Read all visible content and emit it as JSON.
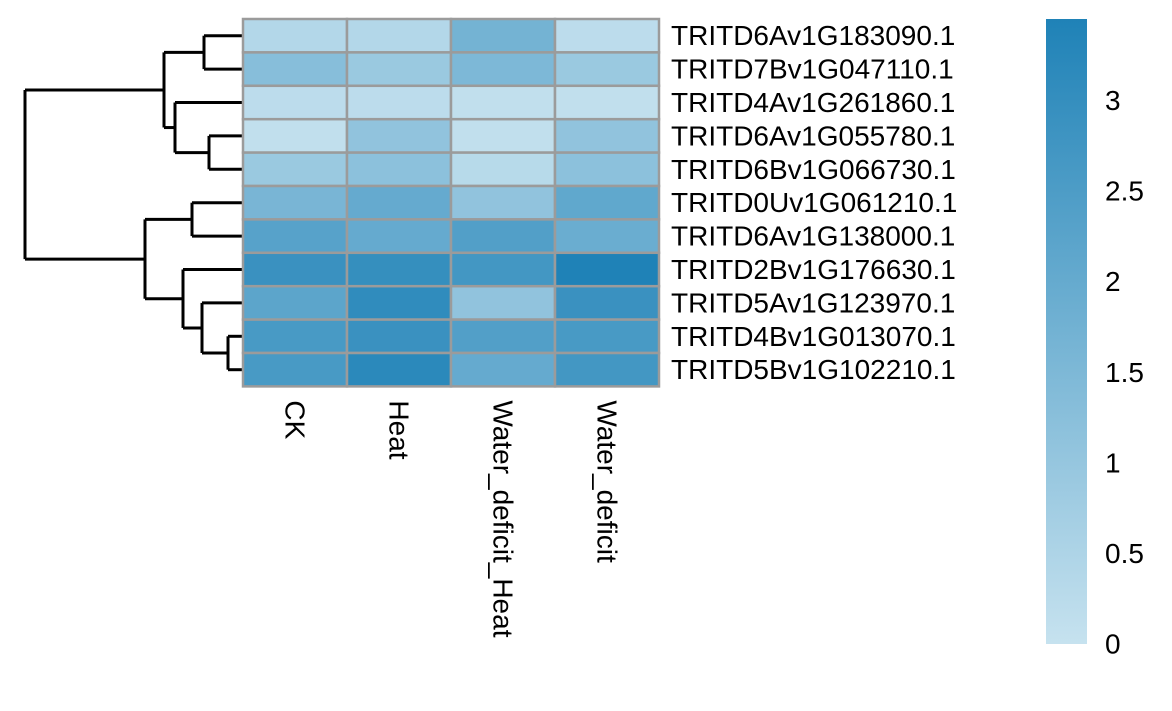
{
  "chart_data": {
    "type": "heatmap",
    "title": "",
    "xlabel": "",
    "ylabel": "",
    "columns": [
      "CK",
      "Heat",
      "Water_deficit_Heat",
      "Water_deficit"
    ],
    "rows": [
      "TRITD6Av1G183090.1",
      "TRITD7Bv1G047110.1",
      "TRITD4Av1G261860.1",
      "TRITD6Av1G055780.1",
      "TRITD6Bv1G066730.1",
      "TRITD0Uv1G061210.1",
      "TRITD6Av1G138000.1",
      "TRITD2Bv1G176630.1",
      "TRITD5Av1G123970.1",
      "TRITD4Bv1G013070.1",
      "TRITD5Bv1G102210.1"
    ],
    "values": [
      [
        0.4,
        0.4,
        1.7,
        0.2
      ],
      [
        1.3,
        0.9,
        1.5,
        0.9
      ],
      [
        0.2,
        0.2,
        0.1,
        0.1
      ],
      [
        0.1,
        1.1,
        0.1,
        1.1
      ],
      [
        0.9,
        1.2,
        0.3,
        1.2
      ],
      [
        1.6,
        2.0,
        1.1,
        2.1
      ],
      [
        2.3,
        2.0,
        2.4,
        1.9
      ],
      [
        2.9,
        3.0,
        2.7,
        3.5
      ],
      [
        2.2,
        3.1,
        1.1,
        2.9
      ],
      [
        2.6,
        2.9,
        2.4,
        2.6
      ],
      [
        2.6,
        3.2,
        2.0,
        2.7
      ]
    ],
    "color_scale": {
      "min": 0,
      "max": 3.45,
      "low_color": "#c6e2ef",
      "high_color": "#1f82b7",
      "ticks": [
        "0",
        "0.5",
        "1",
        "1.5",
        "2",
        "2.5",
        "3"
      ],
      "tick_values": [
        0,
        0.5,
        1,
        1.5,
        2,
        2.5,
        3
      ]
    },
    "cell_border_color": "#9b9b9b",
    "dendrogram": "rows",
    "legend": "right"
  }
}
